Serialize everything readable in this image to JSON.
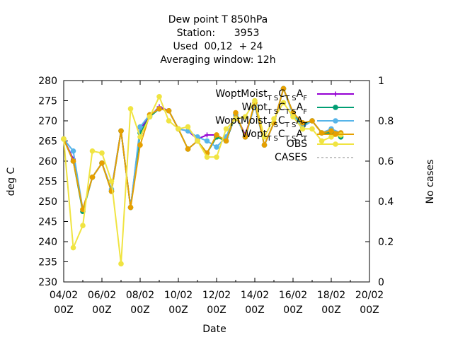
{
  "chart_data": {
    "type": "line",
    "title_lines": [
      "Dew point T 850hPa",
      "Station:      3953",
      "Used  00,12  + 24",
      "Averaging window: 12h"
    ],
    "xlabel": "Date",
    "ylabel": "deg C",
    "y2label": "No cases",
    "ylim": [
      230,
      280
    ],
    "y2lim": [
      0,
      1
    ],
    "yticks": [
      230,
      235,
      240,
      245,
      250,
      255,
      260,
      265,
      270,
      275,
      280
    ],
    "y2ticks": [
      "0",
      "0.2",
      "0.4",
      "0.6",
      "0.8",
      "1"
    ],
    "xlim_days": [
      4,
      20
    ],
    "xticks": [
      {
        "day": 4,
        "line1": "04/02",
        "line2": "00Z"
      },
      {
        "day": 6,
        "line1": "06/02",
        "line2": "00Z"
      },
      {
        "day": 8,
        "line1": "08/02",
        "line2": "00Z"
      },
      {
        "day": 10,
        "line1": "10/02",
        "line2": "00Z"
      },
      {
        "day": 12,
        "line1": "12/02",
        "line2": "00Z"
      },
      {
        "day": 14,
        "line1": "14/02",
        "line2": "00Z"
      },
      {
        "day": 16,
        "line1": "16/02",
        "line2": "00Z"
      },
      {
        "day": 18,
        "line1": "18/02",
        "line2": "00Z"
      },
      {
        "day": 20,
        "line1": "20/02",
        "line2": "00Z"
      }
    ],
    "grid": false,
    "legend_position": "top-right",
    "x": [
      4.0,
      4.5,
      5.0,
      5.5,
      6.0,
      6.5,
      7.0,
      7.5,
      8.0,
      8.5,
      9.0,
      9.5,
      10.0,
      10.5,
      11.0,
      11.5,
      12.0,
      12.5,
      13.0,
      13.5,
      14.0,
      14.5,
      15.0,
      15.5,
      16.0,
      16.5,
      17.0,
      17.5,
      18.0,
      18.5
    ],
    "series": [
      {
        "legend_main": "WoptMoist",
        "legend_sub1": "T S",
        "legend_C": "C",
        "legend_sub2": "T S",
        "legend_A": "A",
        "legend_sub3": "F",
        "color": "#9400d3",
        "marker": "+",
        "values": [
          265.5,
          260.5,
          248.0,
          256.0,
          259.5,
          253.0,
          267.5,
          248.5,
          268.0,
          271.0,
          273.5,
          272.5,
          268.0,
          267.5,
          265.5,
          266.5,
          266.5,
          265.0,
          271.5,
          266.5,
          274.0,
          264.0,
          269.5,
          278.0,
          272.0,
          269.0,
          270.0,
          267.0,
          267.5,
          266.5
        ]
      },
      {
        "legend_main": "Wopt",
        "legend_sub1": "T S",
        "legend_C": "C",
        "legend_sub2": "T S",
        "legend_A": "A",
        "legend_sub3": "F",
        "color": "#009e73",
        "marker": "*",
        "values": [
          265.5,
          260.0,
          247.5,
          256.0,
          259.5,
          252.5,
          267.5,
          248.5,
          267.0,
          271.0,
          273.0,
          272.5,
          268.0,
          263.0,
          265.0,
          262.0,
          266.0,
          265.0,
          271.5,
          266.0,
          274.0,
          264.0,
          269.5,
          278.0,
          272.0,
          269.0,
          270.0,
          267.0,
          267.0,
          266.0
        ]
      },
      {
        "legend_main": "WoptMoist",
        "legend_sub1": "T S",
        "legend_C": "C",
        "legend_sub2": "T S",
        "legend_A": "A",
        "legend_sub3": "T",
        "color": "#56b4e9",
        "marker": "*",
        "values": [
          265.5,
          262.5,
          248.0,
          256.0,
          259.5,
          253.0,
          267.5,
          248.5,
          268.5,
          271.5,
          273.0,
          272.5,
          268.0,
          267.5,
          266.0,
          265.0,
          263.5,
          266.0,
          271.5,
          266.0,
          274.0,
          264.0,
          269.5,
          278.0,
          271.5,
          268.5,
          270.0,
          267.0,
          268.0,
          267.0
        ]
      },
      {
        "legend_main": "Wopt",
        "legend_sub1": "T S",
        "legend_C": "C",
        "legend_sub2": "T S",
        "legend_A": "A",
        "legend_sub3": "T",
        "color": "#e69f00",
        "marker": "*",
        "values": [
          265.5,
          260.0,
          248.0,
          256.0,
          259.5,
          252.5,
          267.5,
          248.5,
          264.0,
          271.5,
          273.0,
          272.5,
          268.0,
          263.0,
          265.0,
          262.0,
          266.5,
          265.0,
          272.0,
          266.0,
          274.5,
          264.0,
          269.5,
          278.0,
          272.0,
          269.5,
          270.0,
          267.0,
          267.5,
          267.0
        ]
      },
      {
        "legend_main": "OBS",
        "color": "#f0e442",
        "marker": "*",
        "values": [
          265.5,
          238.5,
          244.0,
          262.5,
          262.0,
          255.0,
          234.5,
          273.0,
          266.0,
          271.0,
          276.0,
          270.0,
          268.0,
          268.5,
          265.0,
          261.0,
          261.0,
          268.0,
          270.5,
          271.0,
          275.0,
          266.0,
          270.5,
          274.5,
          271.0,
          268.0,
          268.0,
          265.0,
          266.0,
          266.5
        ]
      }
    ],
    "cases_series": {
      "legend_main": "CASES",
      "color": "#888888",
      "dash": true
    }
  }
}
